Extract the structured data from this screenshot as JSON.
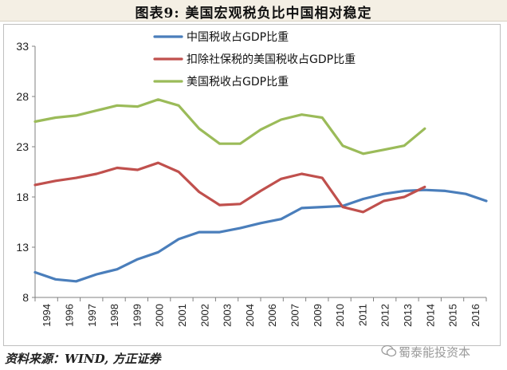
{
  "header": {
    "title": "图表9:   美国宏观税负比中国相对稳定"
  },
  "footer": {
    "source": "资料来源：WIND, 方正证券",
    "watermark": "蜀泰能投资本"
  },
  "chart_data": {
    "type": "line",
    "title": "",
    "xlabel": "",
    "ylabel": "",
    "ylim": [
      8,
      33
    ],
    "yticks": [
      8,
      13,
      18,
      23,
      28,
      33
    ],
    "xticks": [
      "1994",
      "1996",
      "1997",
      "1998",
      "1999",
      "2000",
      "2001",
      "2002",
      "2003",
      "2004",
      "2006",
      "2007",
      "2009",
      "2010",
      "2011",
      "2012",
      "2013",
      "2014",
      "2015",
      "2016"
    ],
    "grid": false,
    "legend_position": "top",
    "series": [
      {
        "name": "中国税收占GDP比重",
        "color": "#4a7ebb",
        "x": [
          1994,
          1995,
          1996,
          1997,
          1998,
          1999,
          2000,
          2001,
          2002,
          2003,
          2004,
          2005,
          2006,
          2007,
          2008,
          2009,
          2010,
          2011,
          2012,
          2013,
          2014,
          2015,
          2016
        ],
        "values": [
          10.5,
          9.8,
          9.6,
          10.3,
          10.8,
          11.8,
          12.5,
          13.8,
          14.5,
          14.5,
          14.9,
          15.4,
          15.8,
          16.9,
          17.0,
          17.1,
          17.8,
          18.3,
          18.6,
          18.7,
          18.6,
          18.3,
          17.6
        ]
      },
      {
        "name": "扣除社保税的美国税收占GDP比重",
        "color": "#c0504d",
        "x": [
          1994,
          1995,
          1996,
          1997,
          1998,
          1999,
          2000,
          2001,
          2002,
          2003,
          2004,
          2005,
          2006,
          2007,
          2008,
          2009,
          2010,
          2011,
          2012,
          2013
        ],
        "values": [
          19.2,
          19.6,
          19.9,
          20.3,
          20.9,
          20.7,
          21.4,
          20.5,
          18.5,
          17.2,
          17.3,
          18.6,
          19.8,
          20.3,
          19.9,
          17.0,
          16.5,
          17.6,
          18.0,
          19.0
        ]
      },
      {
        "name": "美国税收占GDP比重",
        "color": "#9bbb59",
        "x": [
          1994,
          1995,
          1996,
          1997,
          1998,
          1999,
          2000,
          2001,
          2002,
          2003,
          2004,
          2005,
          2006,
          2007,
          2008,
          2009,
          2010,
          2011,
          2012,
          2013
        ],
        "values": [
          25.5,
          25.9,
          26.1,
          26.6,
          27.1,
          27.0,
          27.7,
          27.1,
          24.8,
          23.3,
          23.3,
          24.7,
          25.7,
          26.2,
          25.9,
          23.1,
          22.3,
          22.7,
          23.1,
          24.8
        ]
      }
    ]
  }
}
